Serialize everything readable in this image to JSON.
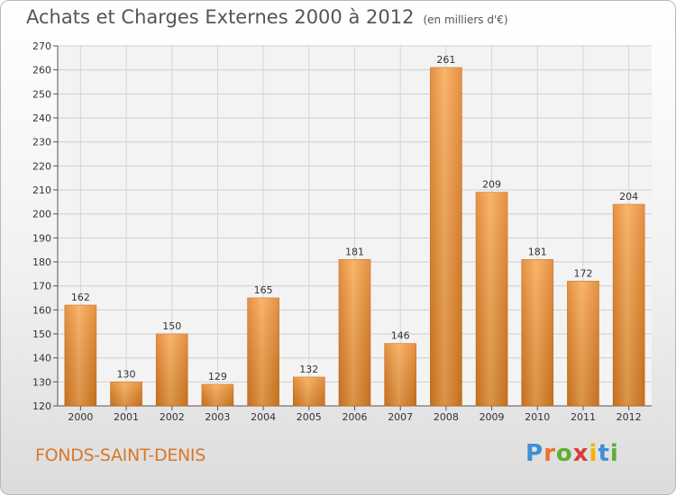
{
  "title": "Achats et Charges Externes 2000 à 2012",
  "subtitle": "(en milliers d'€)",
  "commune": "FONDS-SAINT-DENIS",
  "logo": {
    "letters": [
      "P",
      "r",
      "o",
      "x",
      "i",
      "t",
      "i"
    ],
    "colors": [
      "#3d8fd6",
      "#e8762b",
      "#5bb032",
      "#d93a3a",
      "#f0b400",
      "#3d8fd6",
      "#5bb032"
    ]
  },
  "chart_data": {
    "type": "bar",
    "categories": [
      "2000",
      "2001",
      "2002",
      "2003",
      "2004",
      "2005",
      "2006",
      "2007",
      "2008",
      "2009",
      "2010",
      "2011",
      "2012"
    ],
    "values": [
      162,
      130,
      150,
      129,
      165,
      132,
      181,
      146,
      261,
      209,
      181,
      172,
      204
    ],
    "ylim": [
      120,
      270
    ],
    "yticks": [
      120,
      130,
      140,
      150,
      160,
      170,
      180,
      190,
      200,
      210,
      220,
      230,
      240,
      250,
      260,
      270
    ],
    "grid": true,
    "colors": {
      "bar_light": "#f7a953",
      "bar_dark": "#e07d22",
      "bar_edge": "#c86a18"
    }
  }
}
